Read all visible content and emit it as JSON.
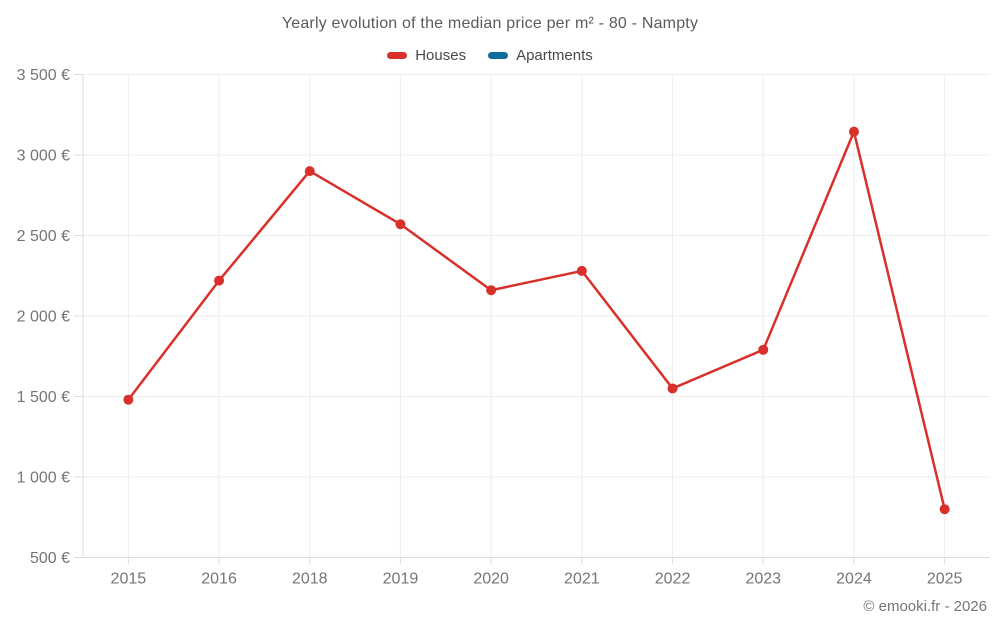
{
  "header": {
    "title": "Yearly evolution of the median price per m² - 80 - Nampty"
  },
  "legend": {
    "items": [
      {
        "label": "Houses",
        "color": "#d8312b"
      },
      {
        "label": "Apartments",
        "color": "#0e6b9b"
      }
    ]
  },
  "footer": {
    "copyright": "© emooki.fr - 2026"
  },
  "chart_data": {
    "type": "line",
    "title": "Yearly evolution of the median price per m² - 80 - Nampty",
    "categories": [
      "2015",
      "2016",
      "2018",
      "2019",
      "2020",
      "2021",
      "2022",
      "2023",
      "2024",
      "2025"
    ],
    "series": [
      {
        "name": "Houses",
        "color": "#d8312b",
        "values": [
          1480,
          2220,
          2900,
          2570,
          2160,
          2280,
          1550,
          1790,
          3145,
          800
        ]
      },
      {
        "name": "Apartments",
        "color": "#0e6b9b",
        "values": []
      }
    ],
    "xlabel": "",
    "ylabel": "",
    "ylim": [
      500,
      3500
    ],
    "yticks": [
      500,
      1000,
      1500,
      2000,
      2500,
      3000,
      3500
    ],
    "ytick_labels": [
      "500 €",
      "1 000 €",
      "1 500 €",
      "2 000 €",
      "2 500 €",
      "3 000 €",
      "3 500 €"
    ],
    "currency": "€",
    "grid": true,
    "legend_position": "top"
  }
}
